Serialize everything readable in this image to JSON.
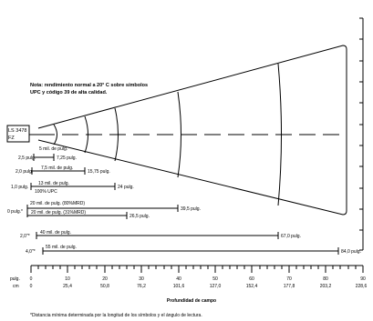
{
  "note": {
    "line1": "Nota: rendimiento normal a 20° C sobre símbolos",
    "line2": "UPC y código 39 de alta calidad."
  },
  "scanner": {
    "line1": "LS 3478",
    "line2": "FZ"
  },
  "ranges": [
    {
      "symbol": "5 mil. de pulg.",
      "start": "2,5 pulg.",
      "end": "7,25 pulg."
    },
    {
      "symbol": "7,5 mil. de pulg.",
      "start": "2,0 pulg.",
      "end": "15,75 pulg."
    },
    {
      "symbol": "13 mil. de pulg.",
      "symbol2": "100% UPC",
      "start": "1,0 pulg.",
      "end": "24 pulg."
    },
    {
      "symbol": "20 mil. de pulg. (80%MRD)",
      "start": "0 pulg.*",
      "end": "39,5 pulg."
    },
    {
      "symbol": "20 mil. de pulg. (31%MRD)",
      "end": "26,5 pulg."
    },
    {
      "symbol": "40 mil. de pulg.",
      "start": "2,0\"*",
      "end": "67,0 pulg."
    },
    {
      "symbol": "55 mil. de pulg.",
      "start": "4,0\"*",
      "end": "84,0 pulg."
    }
  ],
  "axis": {
    "unit_in": "pulg.",
    "unit_cm": "cm",
    "ticks_in": [
      "0",
      "10",
      "20",
      "30",
      "40",
      "50",
      "60",
      "70",
      "80",
      "90"
    ],
    "ticks_cm": [
      "0",
      "25,4",
      "50,8",
      "76,2",
      "101,6",
      "127,0",
      "152,4",
      "177,8",
      "203,2",
      "228,6"
    ],
    "title": "Profundidad de campo"
  },
  "footnote": "*Distancia mínima determinada por la longitud de los símbolos y el ángulo de lectura."
}
